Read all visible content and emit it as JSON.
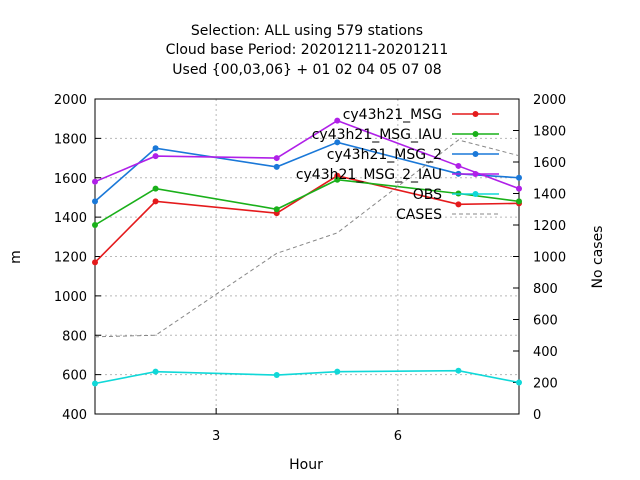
{
  "chart_data": {
    "type": "line",
    "title_lines": [
      "Selection: ALL using   579 stations",
      "Cloud base   Period: 20201211-20201211",
      "Used {00,03,06} + 01 02 04 05 07 08"
    ],
    "xlabel": "Hour",
    "ylabel": "m",
    "y2label": "No cases",
    "xlim": [
      1,
      8
    ],
    "ylim": [
      400,
      2000
    ],
    "y2lim": [
      0,
      2000
    ],
    "xticks": [
      3,
      6
    ],
    "yticks": [
      400,
      600,
      800,
      1000,
      1200,
      1400,
      1600,
      1800,
      2000
    ],
    "y2ticks": [
      0,
      200,
      400,
      600,
      800,
      1000,
      1200,
      1400,
      1600,
      1800,
      2000
    ],
    "legend_position": "top-right",
    "series": [
      {
        "name": "cy43h21_MSG",
        "color": "#e41a1c",
        "axis": "y",
        "style": "solid",
        "x": [
          1,
          2,
          4,
          5,
          7,
          8
        ],
        "values": [
          1170,
          1480,
          1420,
          1610,
          1465,
          1470
        ]
      },
      {
        "name": "cy43h21_MSG_IAU",
        "color": "#1ab01a",
        "axis": "y",
        "style": "solid",
        "x": [
          1,
          2,
          4,
          5,
          7,
          8
        ],
        "values": [
          1360,
          1545,
          1440,
          1590,
          1520,
          1480
        ]
      },
      {
        "name": "cy43h21_MSG_2",
        "color": "#1a78d8",
        "axis": "y",
        "style": "solid",
        "x": [
          1,
          2,
          4,
          5,
          7,
          8
        ],
        "values": [
          1480,
          1750,
          1655,
          1780,
          1620,
          1600
        ]
      },
      {
        "name": "cy43h21_MSG_2_IAU",
        "color": "#b020e8",
        "axis": "y",
        "style": "solid",
        "x": [
          1,
          2,
          4,
          5,
          7,
          8
        ],
        "values": [
          1580,
          1710,
          1700,
          1890,
          1660,
          1545
        ]
      },
      {
        "name": "OBS",
        "color": "#10d8d8",
        "axis": "y",
        "style": "solid",
        "x": [
          1,
          2,
          4,
          5,
          7,
          8
        ],
        "values": [
          555,
          615,
          598,
          615,
          620,
          560
        ]
      },
      {
        "name": "CASES",
        "color": "#888888",
        "axis": "y2",
        "style": "dashed",
        "x": [
          1,
          2,
          4,
          5,
          7,
          8
        ],
        "values": [
          490,
          500,
          1020,
          1150,
          1740,
          1640
        ]
      }
    ]
  }
}
